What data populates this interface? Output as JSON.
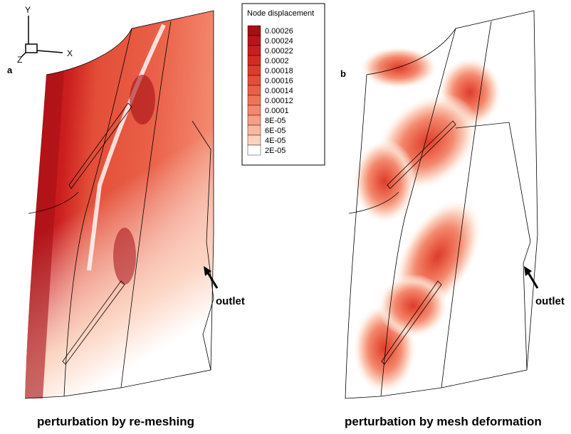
{
  "legend": {
    "title": "Node displacement",
    "levels": [
      {
        "label": "0.00026",
        "color": "#a50f15"
      },
      {
        "label": "0.00024",
        "color": "#b8151a"
      },
      {
        "label": "0.00022",
        "color": "#cb1d1e"
      },
      {
        "label": "0.0002",
        "color": "#d52a24"
      },
      {
        "label": "0.00018",
        "color": "#dd3c2d"
      },
      {
        "label": "0.00016",
        "color": "#e34e38"
      },
      {
        "label": "0.00014",
        "color": "#ea6048"
      },
      {
        "label": "0.00012",
        "color": "#ef7359"
      },
      {
        "label": "0.0001",
        "color": "#f3886e"
      },
      {
        "label": "8E-05",
        "color": "#f69f86"
      },
      {
        "label": "6E-05",
        "color": "#f9b8a2"
      },
      {
        "label": "4E-05",
        "color": "#fcd3c1"
      },
      {
        "label": "2E-05",
        "color": "#ffffff"
      }
    ]
  },
  "triad": {
    "x": "X",
    "y": "Y",
    "z": "Z"
  },
  "panels": [
    {
      "tag": "a",
      "annotation": "outlet",
      "caption": "perturbation by re-meshing"
    },
    {
      "tag": "b",
      "annotation": "outlet",
      "caption": "perturbation by mesh deformation"
    }
  ]
}
